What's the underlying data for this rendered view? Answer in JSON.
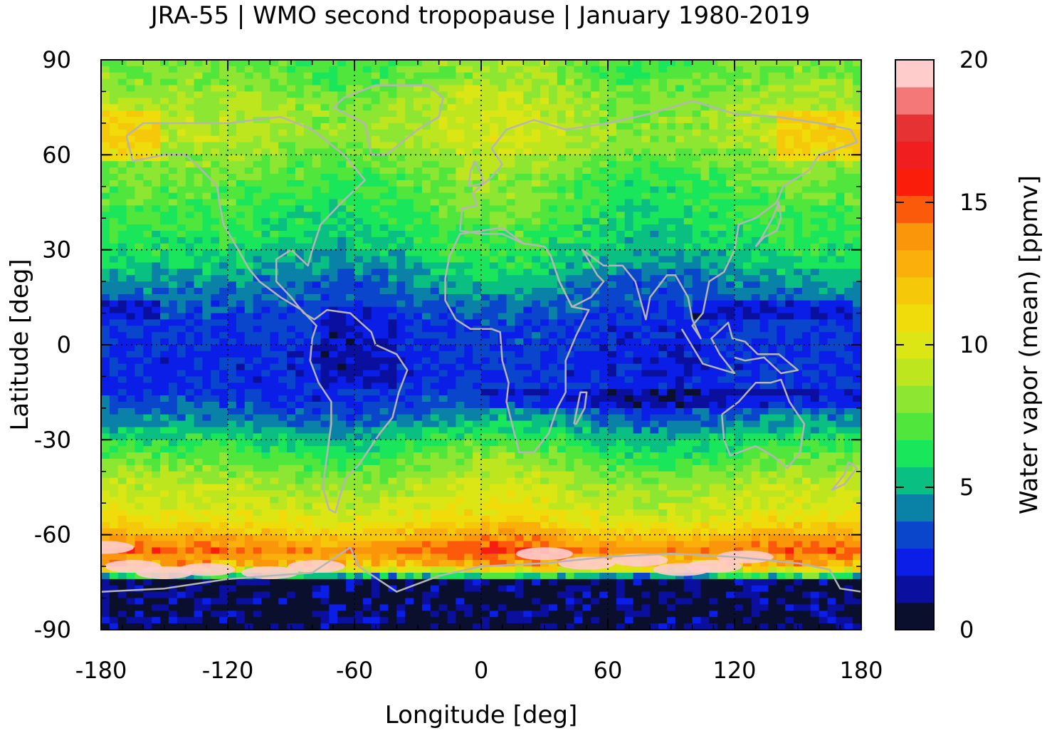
{
  "chart_data": {
    "type": "heatmap",
    "title": "JRA-55 | WMO second tropopause | January 1980-2019",
    "xlabel": "Longitude [deg]",
    "ylabel": "Latitude [deg]",
    "xlim": [
      -180,
      180
    ],
    "ylim": [
      -90,
      90
    ],
    "x_ticks": [
      -180,
      -120,
      -60,
      0,
      60,
      120,
      180
    ],
    "y_ticks": [
      -90,
      -60,
      -30,
      0,
      30,
      60,
      90
    ],
    "x_tick_labels": [
      "-180",
      "-120",
      "-60",
      "0",
      "60",
      "120",
      "180"
    ],
    "y_tick_labels": [
      "-90",
      "-60",
      "-30",
      "0",
      "30",
      "60",
      "90"
    ],
    "grid": true,
    "colorbar": {
      "label": "Water vapor (mean) [ppmv]",
      "range": [
        0,
        20
      ],
      "ticks": [
        0,
        5,
        10,
        15,
        20
      ],
      "tick_labels": [
        "0",
        "5",
        "10",
        "15",
        "20"
      ],
      "colors": [
        "#0b0f2e",
        "#0a0f9e",
        "#0a1ee8",
        "#0a46cc",
        "#0a82a8",
        "#0abf82",
        "#19e65a",
        "#50e63c",
        "#8ce632",
        "#bee61e",
        "#dce614",
        "#f0dc0a",
        "#f5c80a",
        "#faaf0a",
        "#fa960a",
        "#fa5a0a",
        "#fa1e0a",
        "#f01e1e",
        "#e63232",
        "#f57878",
        "#ffcccc"
      ]
    },
    "zonal_profile": {
      "lat": [
        -90,
        -80,
        -75,
        -70,
        -65,
        -60,
        -55,
        -50,
        -45,
        -40,
        -35,
        -30,
        -25,
        -20,
        -15,
        -10,
        -5,
        0,
        5,
        10,
        15,
        20,
        25,
        30,
        35,
        40,
        45,
        50,
        55,
        60,
        65,
        70,
        75,
        80,
        85,
        90
      ],
      "value": [
        0.5,
        0.5,
        1.5,
        12,
        14.5,
        12.5,
        10.5,
        9.5,
        9,
        8,
        7,
        6,
        4.5,
        3.5,
        2.8,
        2.6,
        2.6,
        2.8,
        2.8,
        3.2,
        3.8,
        4.3,
        5.3,
        5.8,
        6.2,
        6.6,
        6.9,
        7.1,
        7.5,
        8.1,
        8.8,
        8.8,
        8.6,
        8.2,
        7.6,
        7.6
      ]
    }
  }
}
